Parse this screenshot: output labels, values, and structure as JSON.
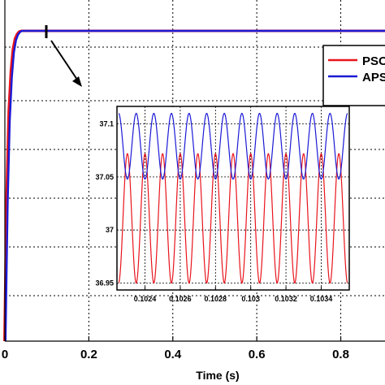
{
  "chart_data": [
    {
      "type": "line",
      "title": "",
      "xlabel": "Time (s)",
      "ylabel": "",
      "xlim": [
        0,
        0.9
      ],
      "x_ticks": [
        "0",
        "0.2",
        "0.4",
        "0.6",
        "0.8"
      ],
      "grid": true,
      "legend": {
        "placement": "top-right",
        "entries": [
          "PSO",
          "APSO"
        ]
      },
      "series": [
        {
          "name": "PSO",
          "color": "#e8141c",
          "x": [
            0,
            0.005,
            0.01,
            0.015,
            0.02,
            0.025,
            0.03,
            0.035,
            0.04,
            0.9
          ],
          "y": [
            0,
            0.47,
            0.74,
            0.87,
            0.94,
            0.975,
            0.99,
            0.998,
            1,
            1
          ]
        },
        {
          "name": "APSO",
          "color": "#1a1ad6",
          "x": [
            0,
            0.005,
            0.01,
            0.015,
            0.02,
            0.025,
            0.03,
            0.035,
            0.04,
            0.9
          ],
          "y": [
            0,
            0.44,
            0.71,
            0.85,
            0.93,
            0.97,
            0.988,
            0.997,
            1,
            1
          ]
        }
      ],
      "annotation": {
        "type": "zoom-arrow",
        "marker_x": 0.1
      }
    },
    {
      "type": "line",
      "title": "",
      "xlabel": "",
      "ylabel": "",
      "xlim": [
        0.10225,
        0.10355
      ],
      "ylim": [
        36.945,
        37.115
      ],
      "x_ticks": [
        "0.1024",
        "0.1026",
        "0.1028",
        "0.103",
        "0.1032",
        "0.1034"
      ],
      "y_ticks": [
        "36.95",
        "37",
        "37.05",
        "37.1"
      ],
      "grid": true,
      "series": [
        {
          "name": "PSO",
          "color": "#e8141c",
          "shape": "sinusoid",
          "period": 0.0001,
          "phase_x": 0.10225,
          "min": 36.95,
          "max": 37.072
        },
        {
          "name": "APSO",
          "color": "#1a1ad6",
          "shape": "sinusoid",
          "period": 0.0001,
          "phase_x": 0.10225,
          "min": 37.048,
          "max": 37.11
        }
      ]
    }
  ]
}
